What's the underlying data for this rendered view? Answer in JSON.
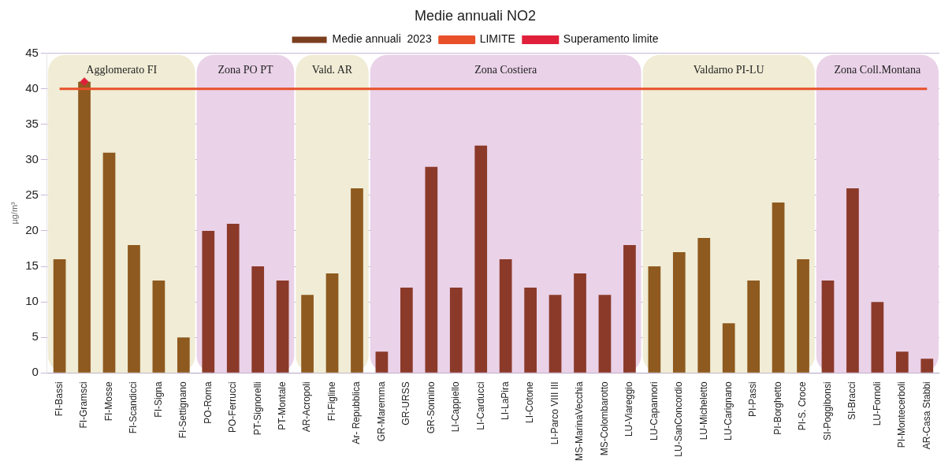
{
  "chart_data": {
    "type": "bar",
    "title": "Medie annuali NO2",
    "ylabel": "µg/m³",
    "categories": [
      "FI-Bassi",
      "FI-Gramsci",
      "FI-Mosse",
      "FI-Scandicci",
      "FI-Signa",
      "FI-Settignano",
      "PO-Roma",
      "PO-Ferrucci",
      "PT-Signorelli",
      "PT-Montale",
      "AR-Acropoli",
      "FI-Figline",
      "Ar- Repubblica",
      "GR-Maremma",
      "GR-URSS",
      "GR-Sonnino",
      "LI-Cappiello",
      "LI-Carducci",
      "LI-LaPira",
      "LI-Cotone",
      "LI-Parco VIII III",
      "MS-MarinaVecchia",
      "MS-Colombarotto",
      "LU-Viareggio",
      "LU-Capannori",
      "LU-SanConcordio",
      "LU-Micheletto",
      "LU-Carignano",
      "PI-Passi",
      "PI-Borghetto",
      "PI-S. Croce",
      "SI-Poggibonsi",
      "SI-Bracci",
      "LU-Fornoli",
      "PI-Montecerboli",
      "AR-Casa Stabbi"
    ],
    "series": [
      {
        "name": "Medie annuali  2023",
        "color": "#7b3f1e",
        "values": [
          16,
          41,
          31,
          18,
          13,
          5,
          20,
          21,
          15,
          13,
          11,
          14,
          26,
          3,
          12,
          29,
          12,
          32,
          16,
          12,
          11,
          14,
          11,
          18,
          15,
          17,
          19,
          7,
          13,
          24,
          16,
          13,
          26,
          10,
          3,
          2
        ],
        "colors": [
          "#8e5a1f",
          "#8e5a1f",
          "#8e5a1f",
          "#8e5a1f",
          "#8e5a1f",
          "#8e5a1f",
          "#8b3a2a",
          "#8b3a2a",
          "#8b3a2a",
          "#8b3a2a",
          "#8e5a1f",
          "#8e5a1f",
          "#8e5a1f",
          "#8b3a2a",
          "#8b3a2a",
          "#8b3a2a",
          "#8b3a2a",
          "#8b3a2a",
          "#8b3a2a",
          "#8b3a2a",
          "#8b3a2a",
          "#8b3a2a",
          "#8b3a2a",
          "#8b3a2a",
          "#8e5a1f",
          "#8e5a1f",
          "#8e5a1f",
          "#8e5a1f",
          "#8e5a1f",
          "#8e5a1f",
          "#8e5a1f",
          "#8b3a2a",
          "#8b3a2a",
          "#8b3a2a",
          "#8b3a2a",
          "#8b3a2a"
        ]
      },
      {
        "name": "LIMITE",
        "type": "line",
        "color": "#e8502a",
        "values": [
          40,
          40,
          40,
          40,
          40,
          40,
          40,
          40,
          40,
          40,
          40,
          40,
          40,
          40,
          40,
          40,
          40,
          40,
          40,
          40,
          40,
          40,
          40,
          40,
          40,
          40,
          40,
          40,
          40,
          40,
          40,
          40,
          40,
          40,
          40,
          40
        ]
      },
      {
        "name": "Superamento limite",
        "type": "scatter",
        "color": "#e0203a",
        "x": [
          "FI-Gramsci"
        ],
        "values": [
          41
        ]
      }
    ],
    "bands": [
      {
        "axis": "x",
        "from": "FI-Bassi",
        "to": "FI-Settignano",
        "label": "Agglomerato FI",
        "color": "#f0ecd5"
      },
      {
        "axis": "x",
        "from": "PO-Roma",
        "to": "PT-Montale",
        "label": "Zona PO PT",
        "color": "#ead2e8"
      },
      {
        "axis": "x",
        "from": "AR-Acropoli",
        "to": "Ar- Repubblica",
        "label": "Vald. AR",
        "color": "#f0ecd5"
      },
      {
        "axis": "x",
        "from": "GR-Maremma",
        "to": "LU-Viareggio",
        "label": "Zona Costiera",
        "color": "#ead2e8"
      },
      {
        "axis": "x",
        "from": "LU-Capannori",
        "to": "PI-S. Croce",
        "label": "Valdarno PI-LU",
        "color": "#f0ecd5"
      },
      {
        "axis": "x",
        "from": "SI-Poggibonsi",
        "to": "AR-Casa Stabbi",
        "label": "Zona Coll.Montana",
        "color": "#ead2e8"
      }
    ],
    "ylim": [
      0,
      45
    ],
    "yticks": [
      0,
      5,
      10,
      15,
      20,
      25,
      30,
      35,
      40,
      45
    ],
    "grid": "y",
    "legend": "top"
  }
}
